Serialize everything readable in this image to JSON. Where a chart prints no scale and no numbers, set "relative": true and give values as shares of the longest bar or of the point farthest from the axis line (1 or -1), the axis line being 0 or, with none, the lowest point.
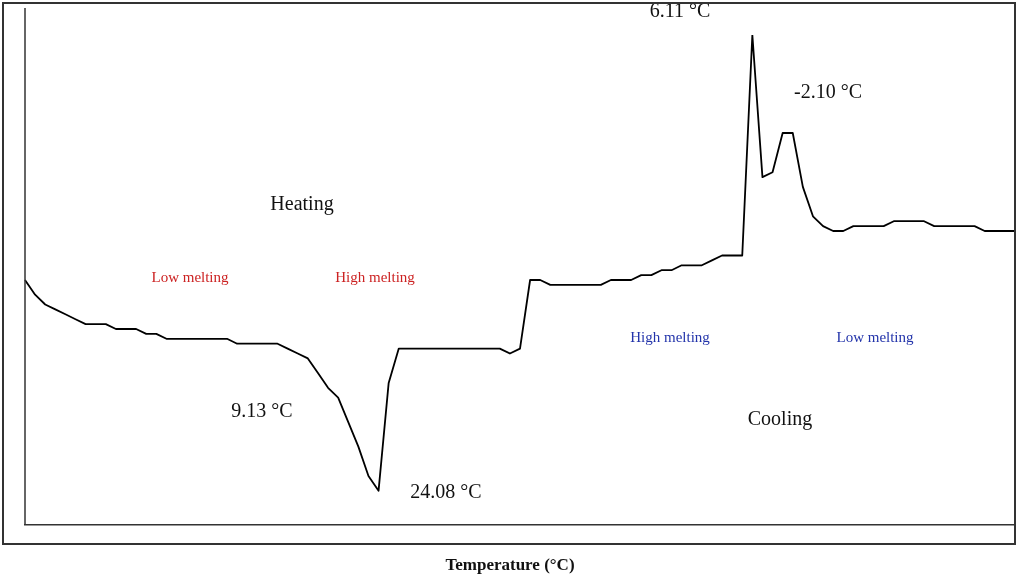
{
  "chart_data": {
    "type": "line",
    "relative": true,
    "xlabel": "Temperature (°C)",
    "color": "#000000",
    "marker": "none",
    "line_style": "solid",
    "grid": false,
    "legend": false,
    "categories": [
      null,
      null,
      null,
      null,
      null,
      null,
      null,
      null,
      null,
      null,
      null,
      null,
      null,
      null,
      null,
      null,
      null,
      null,
      null,
      null,
      null,
      null,
      null,
      null,
      null,
      null,
      null,
      null,
      null,
      null,
      null,
      null,
      null,
      null,
      null,
      null,
      null,
      null,
      null,
      null,
      null,
      null,
      null,
      null,
      null,
      null,
      null,
      null,
      null,
      null,
      null,
      null,
      null,
      null,
      null,
      null,
      null,
      null,
      null,
      null,
      null,
      null,
      null,
      null,
      null,
      null,
      null,
      null,
      null,
      null,
      null,
      null,
      null,
      null,
      null,
      null,
      null,
      null,
      null,
      null,
      null,
      null,
      null,
      null,
      null,
      null,
      null,
      null,
      null,
      null,
      null,
      null,
      null,
      null,
      null,
      null,
      null,
      null,
      null
    ],
    "values": [
      0.5,
      0.47,
      0.45,
      0.44,
      0.43,
      0.42,
      0.41,
      0.41,
      0.41,
      0.4,
      0.4,
      0.4,
      0.39,
      0.39,
      0.38,
      0.38,
      0.38,
      0.38,
      0.38,
      0.38,
      0.38,
      0.37,
      0.37,
      0.37,
      0.37,
      0.37,
      0.36,
      0.35,
      0.34,
      0.31,
      0.28,
      0.26,
      0.21,
      0.16,
      0.1,
      0.07,
      0.29,
      0.36,
      0.36,
      0.36,
      0.36,
      0.36,
      0.36,
      0.36,
      0.36,
      0.36,
      0.36,
      0.36,
      0.35,
      0.36,
      0.5,
      0.5,
      0.49,
      0.49,
      0.49,
      0.49,
      0.49,
      0.49,
      0.5,
      0.5,
      0.5,
      0.51,
      0.51,
      0.52,
      0.52,
      0.53,
      0.53,
      0.53,
      0.54,
      0.55,
      0.55,
      0.55,
      1,
      0.71,
      0.72,
      0.8,
      0.8,
      0.69,
      0.63,
      0.61,
      0.6,
      0.6,
      0.61,
      0.61,
      0.61,
      0.61,
      0.62,
      0.62,
      0.62,
      0.62,
      0.61,
      0.61,
      0.61,
      0.61,
      0.61,
      0.6,
      0.6,
      0.6,
      0.6
    ],
    "annotations": [
      "Heating",
      "Low melting",
      "High melting",
      "High melting",
      "Low melting",
      "Cooling",
      "6.11 °C",
      "-2.10 °C",
      "9.13 °C",
      "24.08 °C"
    ]
  }
}
